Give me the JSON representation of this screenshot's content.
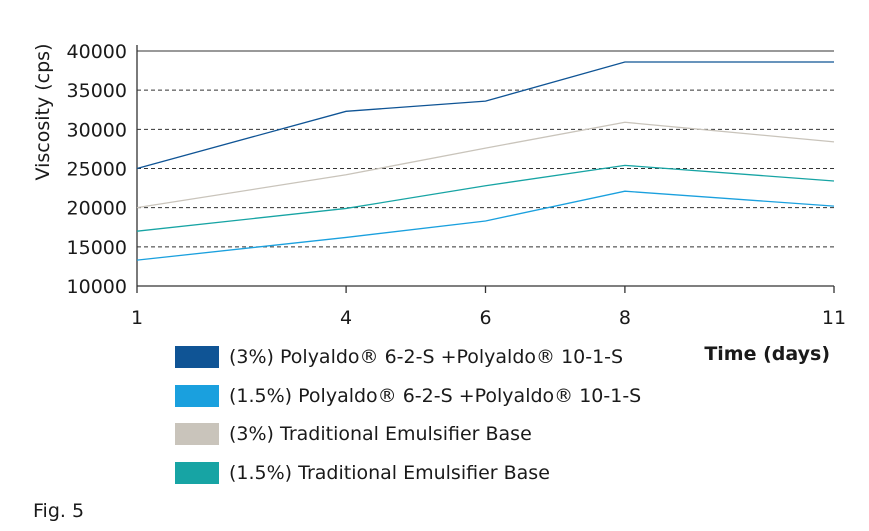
{
  "chart_data": {
    "type": "line",
    "title": "",
    "xlabel": "Time (days)",
    "ylabel": "Viscosity (cps)",
    "x": [
      1,
      4,
      6,
      8,
      11
    ],
    "x_ticks": [
      "1",
      "4",
      "6",
      "8",
      "11"
    ],
    "y_ticks": [
      10000,
      15000,
      20000,
      25000,
      30000,
      35000,
      40000
    ],
    "ylim": [
      10000,
      40000
    ],
    "grid": "horizontal-dashed",
    "legend_position": "bottom-left",
    "series": [
      {
        "name": "(3%) Polyaldo® 6-2-S +Polyaldo® 10-1-S",
        "color": "#0f5495",
        "values": [
          25000,
          32300,
          33600,
          38600,
          38600
        ]
      },
      {
        "name": "(1.5%) Polyaldo® 6-2-S +Polyaldo® 10-1-S",
        "color": "#1aa0de",
        "values": [
          13300,
          16200,
          18300,
          22100,
          20200
        ]
      },
      {
        "name": "(3%) Traditional Emulsifier Base",
        "color": "#c9c4bb",
        "values": [
          20000,
          24200,
          27600,
          30900,
          28400
        ]
      },
      {
        "name": "(1.5%) Traditional Emulsifier Base",
        "color": "#17a4a4",
        "values": [
          17000,
          19900,
          22800,
          25400,
          23400
        ]
      }
    ]
  },
  "figure_label": "Fig. 5"
}
